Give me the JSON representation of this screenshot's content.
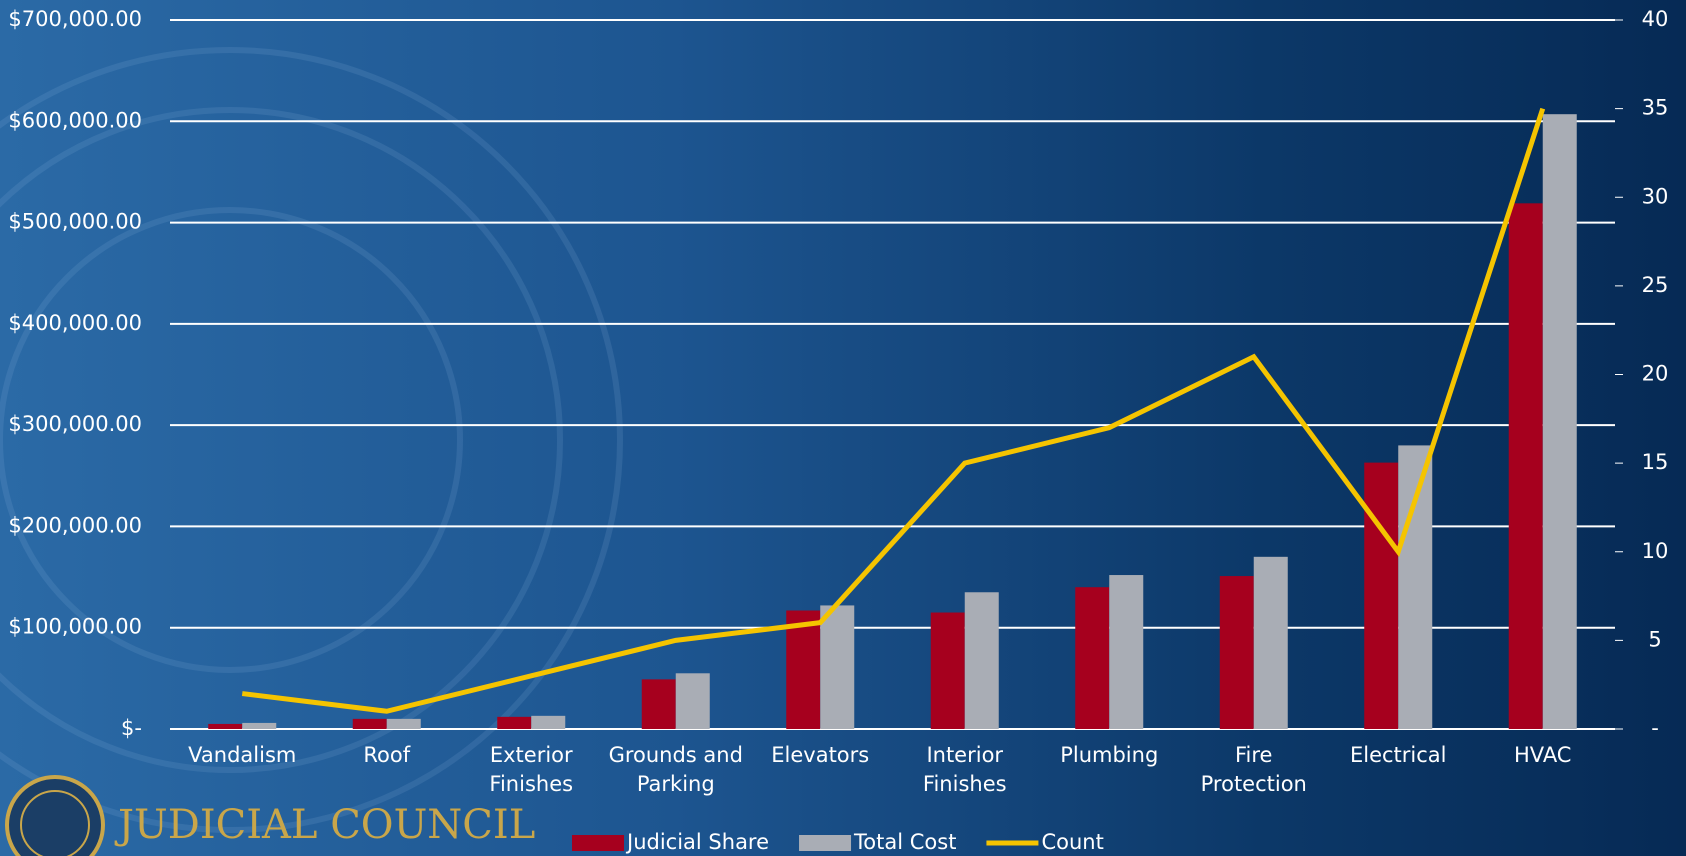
{
  "chart_data": {
    "type": "bar",
    "categories": [
      "Vandalism",
      "Roof",
      "Exterior Finishes",
      "Grounds and Parking",
      "Elevators",
      "Interior Finishes",
      "Plumbing",
      "Fire Protection",
      "Electrical",
      "HVAC"
    ],
    "series": [
      {
        "name": "Judicial Share",
        "type": "bar",
        "color": "#a6001e",
        "values": [
          5000,
          10000,
          12000,
          49000,
          117000,
          115000,
          140000,
          151000,
          263000,
          519000
        ]
      },
      {
        "name": "Total Cost",
        "type": "bar",
        "color": "#a9adb5",
        "values": [
          6000,
          10000,
          13000,
          55000,
          122000,
          135000,
          152000,
          170000,
          280000,
          607000
        ]
      },
      {
        "name": "Count",
        "type": "line",
        "axis": "y2",
        "color": "#f5c400",
        "values": [
          2,
          1,
          3,
          5,
          6,
          15,
          17,
          21,
          10,
          35
        ]
      }
    ],
    "ylim": [
      0,
      700000
    ],
    "yticks": [
      {
        "value": 0,
        "label": "$-"
      },
      {
        "value": 100000,
        "label": "$100,000.00"
      },
      {
        "value": 200000,
        "label": "$200,000.00"
      },
      {
        "value": 300000,
        "label": "$300,000.00"
      },
      {
        "value": 400000,
        "label": "$400,000.00"
      },
      {
        "value": 500000,
        "label": "$500,000.00"
      },
      {
        "value": 600000,
        "label": "$600,000.00"
      },
      {
        "value": 700000,
        "label": "$700,000.00"
      }
    ],
    "y2lim": [
      0,
      40
    ],
    "y2ticks": [
      {
        "value": 0,
        "label": "-"
      },
      5,
      10,
      15,
      20,
      25,
      30,
      35,
      40
    ],
    "grid": true,
    "legend": "bottom",
    "logo_text": "JUDICIAL COUNCIL"
  }
}
